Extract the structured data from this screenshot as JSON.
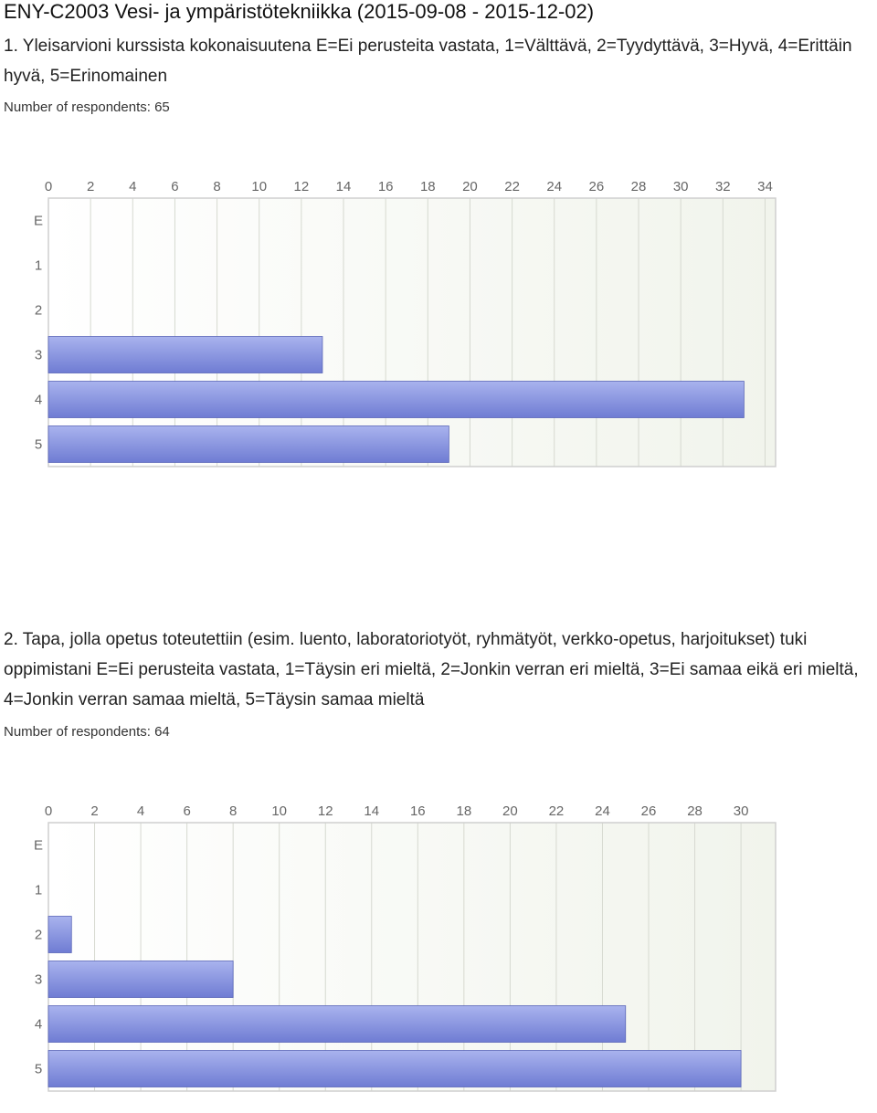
{
  "header": {
    "title": "ENY-C2003 Vesi- ja ympäristötekniikka (2015-09-08 - 2015-12-02)"
  },
  "questions": [
    {
      "text": "1. Yleisarvioni kurssista kokonaisuutena E=Ei perusteita vastata, 1=Välttävä, 2=Tyydyttävä, 3=Hyvä, 4=Erittäin hyvä, 5=Erinomainen",
      "respondents": "Number of respondents: 65"
    },
    {
      "text": "2. Tapa, jolla opetus toteutettiin (esim. luento, laboratoriotyöt, ryhmätyöt, verkko-opetus, harjoitukset) tuki oppimistani E=Ei perusteita vastata, 1=Täysin eri mieltä, 2=Jonkin verran eri mieltä, 3=Ei samaa eikä eri mieltä, 4=Jonkin verran samaa mieltä, 5=Täysin samaa mieltä",
      "respondents": "Number of respondents: 64"
    }
  ],
  "colors": {
    "bar_top": "#a9b3ee",
    "bar_bottom": "#6f7cd3",
    "bar_edge": "#5a66b8",
    "plot_bg": "#f1f4ec",
    "grid": "#d6d9d0",
    "frame": "#cfcfcf"
  },
  "chart_data": [
    {
      "type": "bar",
      "orientation": "horizontal",
      "categories": [
        "E",
        "1",
        "2",
        "3",
        "4",
        "5"
      ],
      "values": [
        0,
        0,
        0,
        13,
        33,
        19
      ],
      "xlim": [
        0,
        34.5
      ],
      "xticks": [
        0,
        2,
        4,
        6,
        8,
        10,
        12,
        14,
        16,
        18,
        20,
        22,
        24,
        26,
        28,
        30,
        32,
        34
      ],
      "title": "",
      "xlabel": "",
      "ylabel": "",
      "grid": true,
      "axis_position": "top"
    },
    {
      "type": "bar",
      "orientation": "horizontal",
      "categories": [
        "E",
        "1",
        "2",
        "3",
        "4",
        "5"
      ],
      "values": [
        0,
        0,
        1,
        8,
        25,
        30
      ],
      "xlim": [
        0,
        31.5
      ],
      "xticks": [
        0,
        2,
        4,
        6,
        8,
        10,
        12,
        14,
        16,
        18,
        20,
        22,
        24,
        26,
        28,
        30
      ],
      "title": "",
      "xlabel": "",
      "ylabel": "",
      "grid": true,
      "axis_position": "top"
    }
  ]
}
